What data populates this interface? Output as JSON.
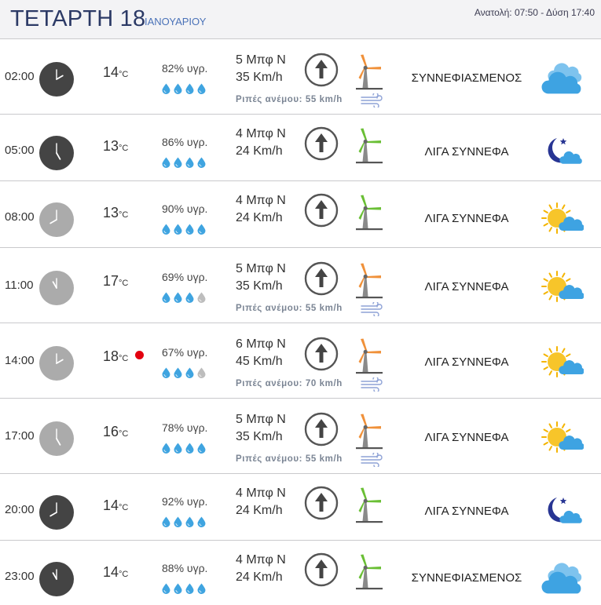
{
  "header": {
    "day": "ΤΕΤΑΡΤΗ 18",
    "month": "ΙΑΝΟΥΑΡΙΟΥ",
    "sun_times": "Ανατολή: 07:50  - Δύση 17:40"
  },
  "temp_unit": "°C",
  "colors": {
    "night_clock": "#444444",
    "day_clock": "#ababab",
    "drop_full": "#3fa4e0",
    "drop_empty": "#bdbdbd",
    "turbine_green": "#6abf35",
    "turbine_orange": "#f0913a",
    "alert": "#e3000f",
    "title": "#2c3a66"
  },
  "rows": [
    {
      "time": "02:00",
      "clock": "night",
      "temp": "14",
      "alert": false,
      "humidity": "82% υγρ.",
      "drops": 4,
      "wind_bft": "5 Μπφ N",
      "wind_kmh": "35 Km/h",
      "turbine": "orange",
      "gusts": "Ριπές ανέμου: 55 km/h",
      "condition": "ΣΥΝΝΕΦΙΑΣΜΕΝΟΣ",
      "icon": "cloudy-icon"
    },
    {
      "time": "05:00",
      "clock": "night",
      "temp": "13",
      "alert": false,
      "humidity": "86% υγρ.",
      "drops": 4,
      "wind_bft": "4 Μπφ N",
      "wind_kmh": "24 Km/h",
      "turbine": "green",
      "gusts": "",
      "condition": "ΛΙΓΑ ΣΥΝΝΕΦΑ",
      "icon": "moon-cloud-icon"
    },
    {
      "time": "08:00",
      "clock": "day",
      "temp": "13",
      "alert": false,
      "humidity": "90% υγρ.",
      "drops": 4,
      "wind_bft": "4 Μπφ N",
      "wind_kmh": "24 Km/h",
      "turbine": "green",
      "gusts": "",
      "condition": "ΛΙΓΑ ΣΥΝΝΕΦΑ",
      "icon": "sun-cloud-icon"
    },
    {
      "time": "11:00",
      "clock": "day",
      "temp": "17",
      "alert": false,
      "humidity": "69% υγρ.",
      "drops": 3,
      "wind_bft": "5 Μπφ N",
      "wind_kmh": "35 Km/h",
      "turbine": "orange",
      "gusts": "Ριπές ανέμου: 55 km/h",
      "condition": "ΛΙΓΑ ΣΥΝΝΕΦΑ",
      "icon": "sun-cloud-icon"
    },
    {
      "time": "14:00",
      "clock": "day",
      "temp": "18",
      "alert": true,
      "humidity": "67% υγρ.",
      "drops": 3,
      "wind_bft": "6 Μπφ N",
      "wind_kmh": "45 Km/h",
      "turbine": "orange",
      "gusts": "Ριπές ανέμου: 70 km/h",
      "condition": "ΛΙΓΑ ΣΥΝΝΕΦΑ",
      "icon": "sun-cloud-icon"
    },
    {
      "time": "17:00",
      "clock": "day",
      "temp": "16",
      "alert": false,
      "humidity": "78% υγρ.",
      "drops": 4,
      "wind_bft": "5 Μπφ N",
      "wind_kmh": "35 Km/h",
      "turbine": "orange",
      "gusts": "Ριπές ανέμου: 55 km/h",
      "condition": "ΛΙΓΑ ΣΥΝΝΕΦΑ",
      "icon": "sun-cloud-icon"
    },
    {
      "time": "20:00",
      "clock": "night",
      "temp": "14",
      "alert": false,
      "humidity": "92% υγρ.",
      "drops": 4,
      "wind_bft": "4 Μπφ N",
      "wind_kmh": "24 Km/h",
      "turbine": "green",
      "gusts": "",
      "condition": "ΛΙΓΑ ΣΥΝΝΕΦΑ",
      "icon": "moon-cloud-icon"
    },
    {
      "time": "23:00",
      "clock": "night",
      "temp": "14",
      "alert": false,
      "humidity": "88% υγρ.",
      "drops": 4,
      "wind_bft": "4 Μπφ N",
      "wind_kmh": "24 Km/h",
      "turbine": "green",
      "gusts": "",
      "condition": "ΣΥΝΝΕΦΙΑΣΜΕΝΟΣ",
      "icon": "cloudy-icon"
    }
  ]
}
